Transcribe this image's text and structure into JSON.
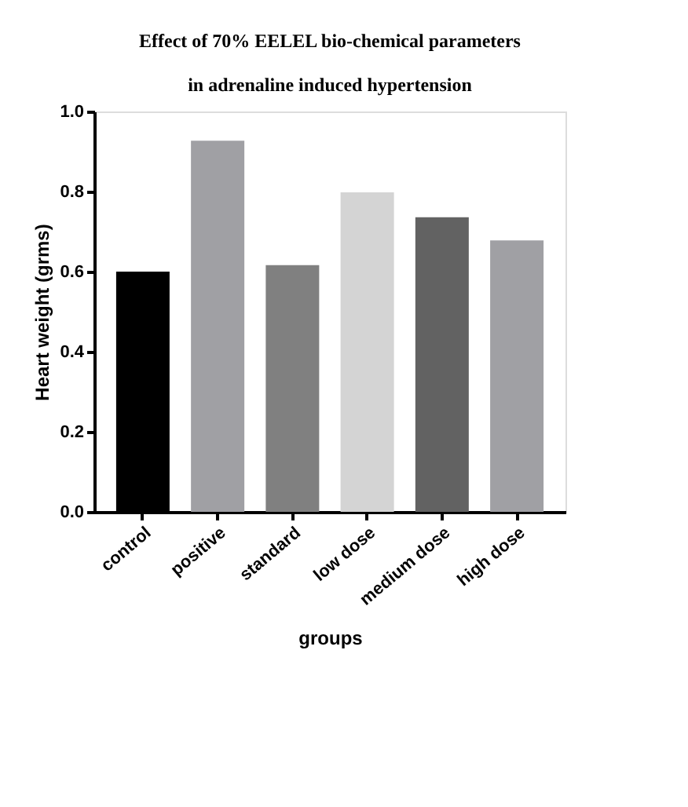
{
  "chart_data": {
    "type": "bar",
    "title": [
      "Effect of 70% EELEL bio-chemical parameters",
      "in adrenaline induced hypertension"
    ],
    "xlabel": "groups",
    "ylabel": "Heart weight (grms)",
    "categories": [
      "control",
      "positive",
      "standard",
      "low dose",
      "medium dose",
      "high dose"
    ],
    "values": [
      0.6,
      0.927,
      0.616,
      0.798,
      0.736,
      0.678
    ],
    "colors": [
      "#000000",
      "#a0a0a4",
      "#808080",
      "#d4d4d4",
      "#626262",
      "#a0a0a4"
    ],
    "ylim": [
      0,
      1.0
    ],
    "yticks": [
      {
        "value": 0,
        "label": "0.0"
      },
      0.2,
      0.4,
      0.6,
      0.8,
      {
        "value": 1,
        "label": "1.0"
      }
    ],
    "grid": false
  }
}
